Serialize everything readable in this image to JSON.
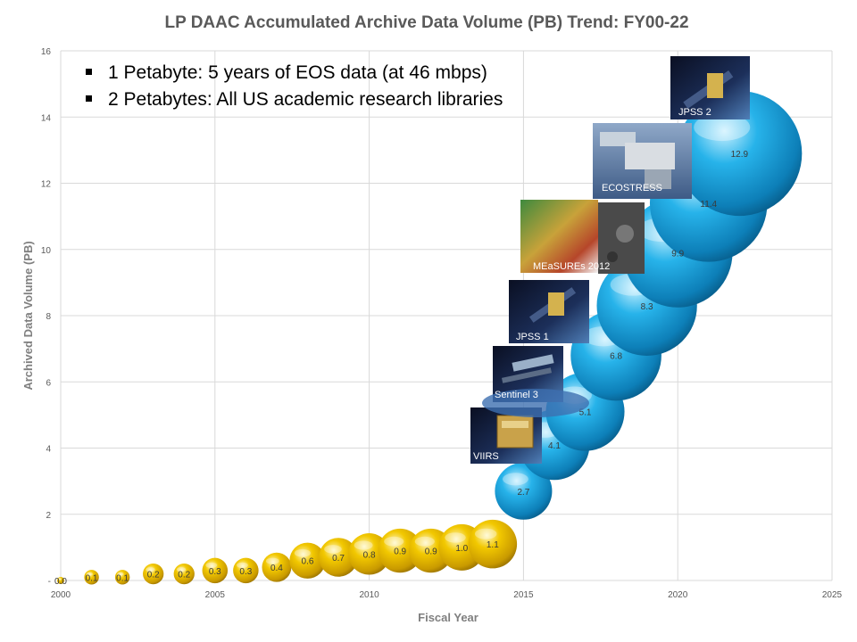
{
  "chart_data": {
    "type": "scatter",
    "title": "LP DAAC Accumulated Archive Data Volume (PB) Trend: FY00-22",
    "xlabel": "Fiscal Year",
    "ylabel": "Archived Data Volume (PB)",
    "xlim": [
      2000,
      2025
    ],
    "ylim": [
      0,
      16
    ],
    "x_ticks": [
      2000,
      2005,
      2010,
      2015,
      2020,
      2025
    ],
    "y_ticks": [
      0,
      2,
      4,
      6,
      8,
      10,
      12,
      14,
      16
    ],
    "y_tick_labels": [
      "-",
      "2",
      "4",
      "6",
      "8",
      "10",
      "12",
      "14",
      "16"
    ],
    "grid": true,
    "style": "bubble",
    "series": [
      {
        "color": "#f2c200",
        "x": [
          2000,
          2001,
          2002,
          2003,
          2004,
          2005,
          2006,
          2007,
          2008,
          2009,
          2010,
          2011,
          2012,
          2013,
          2014
        ],
        "y": [
          0.0,
          0.1,
          0.1,
          0.2,
          0.2,
          0.3,
          0.3,
          0.4,
          0.6,
          0.7,
          0.8,
          0.9,
          0.9,
          1.0,
          1.1
        ],
        "labels": [
          "0.0",
          "0.1",
          "0.1",
          "0.2",
          "0.2",
          "0.3",
          "0.3",
          "0.4",
          "0.6",
          "0.7",
          "0.8",
          "0.9",
          "0.9",
          "1.0",
          "1.1"
        ]
      },
      {
        "color": "#1aa3dc",
        "x": [
          2015,
          2016,
          2017,
          2018,
          2019,
          2020,
          2021,
          2022
        ],
        "y": [
          2.7,
          4.1,
          5.1,
          6.8,
          8.3,
          9.9,
          11.4,
          12.9
        ],
        "labels": [
          "2.7",
          "4.1",
          "5.1",
          "6.8",
          "8.3",
          "9.9",
          "11.4",
          "12.9"
        ]
      }
    ],
    "annotations": [
      "1 Petabyte: 5 years of EOS data (at 46 mbps)",
      "2 Petabytes: All US academic research libraries"
    ],
    "mission_labels": [
      "VIIRS",
      "Sentinel 3",
      "JPSS 1",
      "MEaSUREs 2012",
      "ECOSTRESS",
      "JPSS 2"
    ]
  }
}
